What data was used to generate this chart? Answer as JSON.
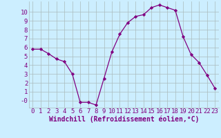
{
  "x": [
    0,
    1,
    2,
    3,
    4,
    5,
    6,
    7,
    8,
    9,
    10,
    11,
    12,
    13,
    14,
    15,
    16,
    17,
    18,
    19,
    20,
    21,
    22,
    23
  ],
  "y": [
    5.8,
    5.8,
    5.3,
    4.7,
    4.4,
    3.0,
    -0.2,
    -0.2,
    -0.5,
    2.5,
    5.5,
    7.5,
    8.8,
    9.5,
    9.7,
    10.5,
    10.8,
    10.5,
    10.2,
    7.2,
    5.2,
    4.3,
    2.9,
    1.4
  ],
  "line_color": "#800080",
  "marker_color": "#800080",
  "bg_color": "#cceeff",
  "grid_color": "#aabbbb",
  "xlabel": "Windchill (Refroidissement éolien,°C)",
  "xlabel_color": "#800080",
  "tick_color": "#800080",
  "ylim": [
    -0.8,
    11.2
  ],
  "xlim": [
    -0.5,
    23.5
  ],
  "ytick_labels": [
    "10",
    "9",
    "8",
    "7",
    "6",
    "5",
    "4",
    "3",
    "2",
    "1",
    "-0"
  ],
  "ytick_vals": [
    10,
    9,
    8,
    7,
    6,
    5,
    4,
    3,
    2,
    1,
    0
  ],
  "xticks": [
    0,
    1,
    2,
    3,
    4,
    5,
    6,
    7,
    8,
    9,
    10,
    11,
    12,
    13,
    14,
    15,
    16,
    17,
    18,
    19,
    20,
    21,
    22,
    23
  ],
  "tick_fontsize": 6.5,
  "label_fontsize": 7.0
}
